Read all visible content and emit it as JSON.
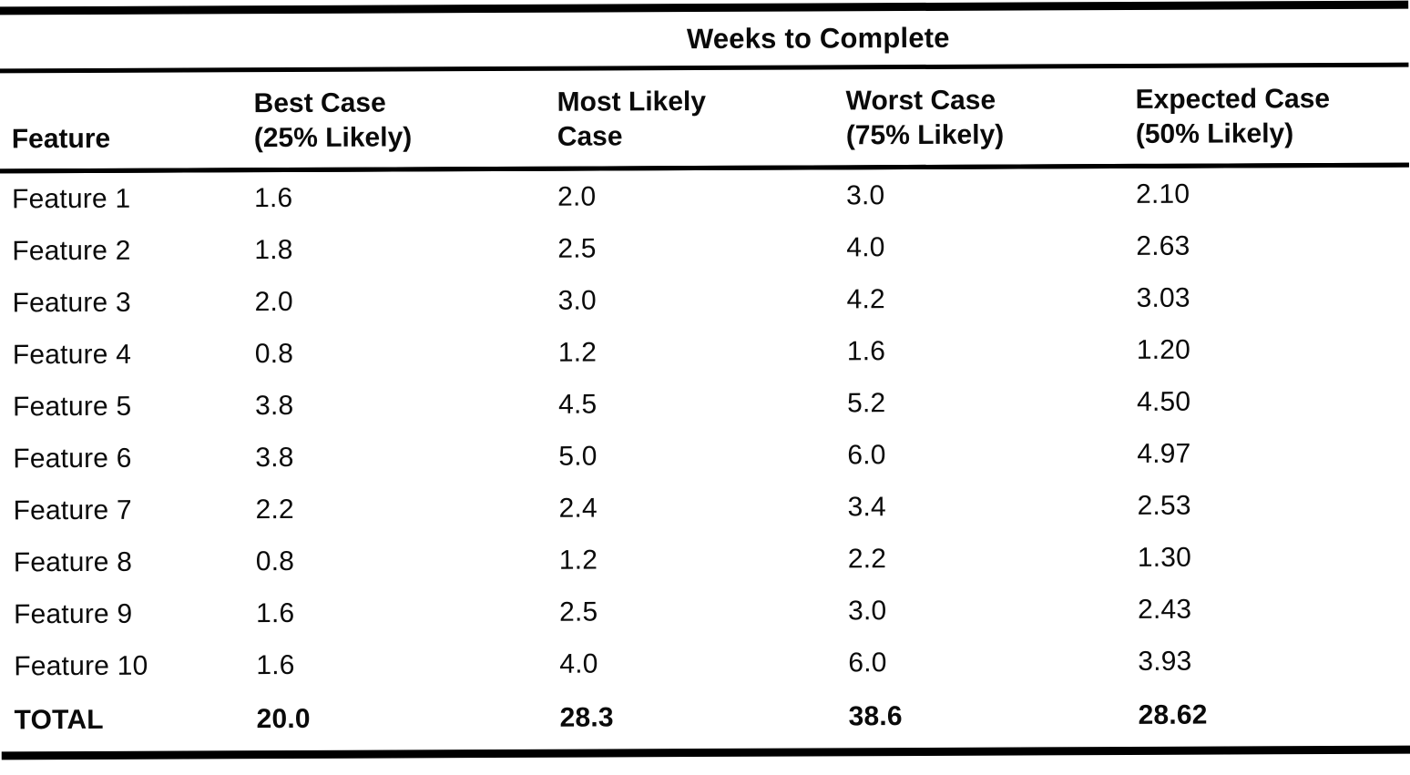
{
  "table": {
    "title": "Weeks to Complete",
    "columns": [
      {
        "line1": "Feature",
        "line2": ""
      },
      {
        "line1": "Best Case",
        "line2": "(25% Likely)"
      },
      {
        "line1": "Most Likely",
        "line2": "Case"
      },
      {
        "line1": "Worst Case",
        "line2": "(75% Likely)"
      },
      {
        "line1": "Expected Case",
        "line2": "(50% Likely)"
      }
    ],
    "rows": [
      {
        "feature": "Feature 1",
        "best": "1.6",
        "most_likely": "2.0",
        "worst": "3.0",
        "expected": "2.10"
      },
      {
        "feature": "Feature 2",
        "best": "1.8",
        "most_likely": "2.5",
        "worst": "4.0",
        "expected": "2.63"
      },
      {
        "feature": "Feature 3",
        "best": "2.0",
        "most_likely": "3.0",
        "worst": "4.2",
        "expected": "3.03"
      },
      {
        "feature": "Feature 4",
        "best": "0.8",
        "most_likely": "1.2",
        "worst": "1.6",
        "expected": "1.20"
      },
      {
        "feature": "Feature 5",
        "best": "3.8",
        "most_likely": "4.5",
        "worst": "5.2",
        "expected": "4.50"
      },
      {
        "feature": "Feature 6",
        "best": "3.8",
        "most_likely": "5.0",
        "worst": "6.0",
        "expected": "4.97"
      },
      {
        "feature": "Feature 7",
        "best": "2.2",
        "most_likely": "2.4",
        "worst": "3.4",
        "expected": "2.53"
      },
      {
        "feature": "Feature 8",
        "best": "0.8",
        "most_likely": "1.2",
        "worst": "2.2",
        "expected": "1.30"
      },
      {
        "feature": "Feature 9",
        "best": "1.6",
        "most_likely": "2.5",
        "worst": "3.0",
        "expected": "2.43"
      },
      {
        "feature": "Feature 10",
        "best": "1.6",
        "most_likely": "4.0",
        "worst": "6.0",
        "expected": "3.93"
      }
    ],
    "total_row": {
      "feature": "TOTAL",
      "best": "20.0",
      "most_likely": "28.3",
      "worst": "38.6",
      "expected": "28.62"
    },
    "colors": {
      "ink": "#0a0a0a",
      "paper": "#ffffff",
      "rule": "#000000"
    }
  }
}
